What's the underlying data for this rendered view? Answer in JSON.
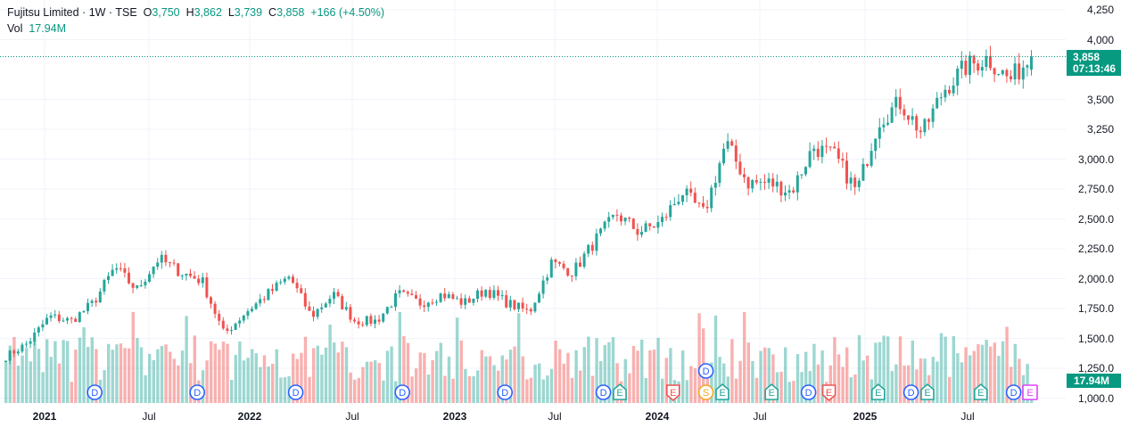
{
  "legend": {
    "symbol": "Fujitsu Limited",
    "interval": "1W",
    "exchange": "TSE",
    "open_label": "O",
    "open": "3,750",
    "high_label": "H",
    "high": "3,862",
    "low_label": "L",
    "low": "3,739",
    "close_label": "C",
    "close": "3,858",
    "change": "+166 (+4.50%)",
    "vol_label": "Vol",
    "vol": "17.94M"
  },
  "price_badge": {
    "price": "3,858",
    "countdown": "07:13:46"
  },
  "volume_badge": "17.94M",
  "y_axis": [
    "4,250",
    "4,000",
    "3,500",
    "3,250",
    "3,000.0",
    "2,750.0",
    "2,500.0",
    "2,250.0",
    "2,000.0",
    "1,750.0",
    "1,500.0",
    "1,250.0",
    "1,000.0"
  ],
  "x_axis": [
    {
      "label": "2021",
      "year": true
    },
    {
      "label": "Jul",
      "year": false
    },
    {
      "label": "2022",
      "year": true
    },
    {
      "label": "Jul",
      "year": false
    },
    {
      "label": "2023",
      "year": true
    },
    {
      "label": "Jul",
      "year": false
    },
    {
      "label": "2024",
      "year": true
    },
    {
      "label": "Jul",
      "year": false
    },
    {
      "label": "2025",
      "year": true
    },
    {
      "label": "Jul",
      "year": false
    }
  ],
  "colors": {
    "up": "#26a69a",
    "down": "#ef5350",
    "dividend": "#2962ff",
    "earnings_up": "#26a69a",
    "earnings_down": "#ef5350",
    "split": "#f5a623",
    "earnings_future": "#e040fb",
    "last_price": "#089981"
  },
  "chart_data": {
    "type": "candlestick",
    "interval": "1W",
    "price_keypoints_week_close": [
      1347,
      1459,
      1683,
      1646,
      1795,
      2093,
      1907,
      2168,
      2056,
      1981,
      1534,
      1720,
      1870,
      2019,
      1683,
      1870,
      1646,
      1646,
      1870,
      1795,
      1870,
      1795,
      1907,
      1795,
      1720,
      2131,
      2056,
      2317,
      2541,
      2392,
      2467,
      2727,
      2541,
      3138,
      2802,
      2802,
      2727,
      3101,
      3026,
      2727,
      3325,
      3474,
      3213,
      3586,
      3772,
      3847,
      3660,
      3858
    ],
    "last_close": 3858,
    "ylim": [
      1000,
      4250
    ],
    "events": [
      {
        "type": "D",
        "week": 22
      },
      {
        "type": "D",
        "week": 47
      },
      {
        "type": "D",
        "week": 71
      },
      {
        "type": "D",
        "week": 97
      },
      {
        "type": "D",
        "week": 122
      },
      {
        "type": "D",
        "week": 146
      },
      {
        "type": "E",
        "week": 150,
        "tone": "up"
      },
      {
        "type": "E",
        "week": 163,
        "tone": "down"
      },
      {
        "type": "S",
        "week": 171
      },
      {
        "type": "D",
        "week": 171,
        "stack": true
      },
      {
        "type": "E",
        "week": 175,
        "tone": "up"
      },
      {
        "type": "E",
        "week": 187,
        "tone": "up"
      },
      {
        "type": "D",
        "week": 196
      },
      {
        "type": "E",
        "week": 201,
        "tone": "down"
      },
      {
        "type": "E",
        "week": 213,
        "tone": "up"
      },
      {
        "type": "D",
        "week": 221
      },
      {
        "type": "E",
        "week": 225,
        "tone": "up"
      },
      {
        "type": "E",
        "week": 238,
        "tone": "up"
      },
      {
        "type": "D",
        "week": 246
      },
      {
        "type": "E",
        "week": 250,
        "tone": "future"
      }
    ]
  }
}
